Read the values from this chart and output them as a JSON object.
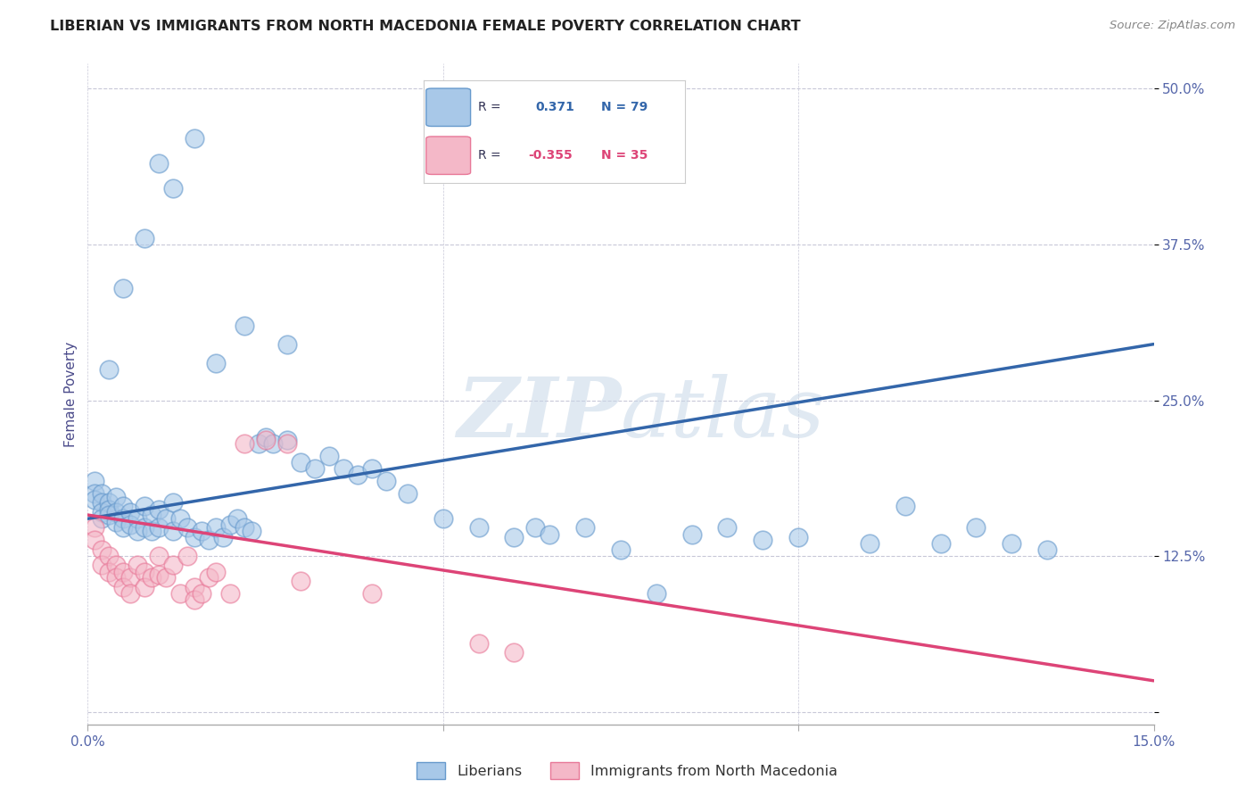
{
  "title": "LIBERIAN VS IMMIGRANTS FROM NORTH MACEDONIA FEMALE POVERTY CORRELATION CHART",
  "source": "Source: ZipAtlas.com",
  "ylabel": "Female Poverty",
  "watermark": "ZIPatlas",
  "xlim": [
    0.0,
    0.15
  ],
  "ylim": [
    -0.01,
    0.52
  ],
  "xticks": [
    0.0,
    0.05,
    0.1,
    0.15
  ],
  "xticklabels": [
    "0.0%",
    "",
    "",
    "15.0%"
  ],
  "ytick_positions": [
    0.0,
    0.125,
    0.25,
    0.375,
    0.5
  ],
  "ytick_labels": [
    "",
    "12.5%",
    "25.0%",
    "37.5%",
    "50.0%"
  ],
  "blue_color": "#a8c8e8",
  "pink_color": "#f4b8c8",
  "blue_edge_color": "#6699cc",
  "pink_edge_color": "#e87898",
  "blue_line_color": "#3366aa",
  "pink_line_color": "#dd4477",
  "grid_color": "#c8c8d8",
  "background_color": "#ffffff",
  "blue_scatter_x": [
    0.001,
    0.001,
    0.001,
    0.002,
    0.002,
    0.002,
    0.002,
    0.003,
    0.003,
    0.003,
    0.004,
    0.004,
    0.004,
    0.005,
    0.005,
    0.005,
    0.006,
    0.006,
    0.007,
    0.007,
    0.008,
    0.008,
    0.009,
    0.009,
    0.01,
    0.01,
    0.011,
    0.012,
    0.012,
    0.013,
    0.014,
    0.015,
    0.016,
    0.017,
    0.018,
    0.019,
    0.02,
    0.021,
    0.022,
    0.023,
    0.024,
    0.025,
    0.026,
    0.028,
    0.03,
    0.032,
    0.034,
    0.036,
    0.038,
    0.04,
    0.042,
    0.045,
    0.05,
    0.055,
    0.06,
    0.063,
    0.065,
    0.07,
    0.075,
    0.08,
    0.085,
    0.09,
    0.095,
    0.1,
    0.11,
    0.115,
    0.12,
    0.125,
    0.13,
    0.135,
    0.003,
    0.005,
    0.008,
    0.01,
    0.012,
    0.015,
    0.018,
    0.022,
    0.028
  ],
  "blue_scatter_y": [
    0.185,
    0.175,
    0.17,
    0.175,
    0.168,
    0.16,
    0.155,
    0.168,
    0.162,
    0.158,
    0.172,
    0.16,
    0.152,
    0.165,
    0.155,
    0.148,
    0.16,
    0.15,
    0.155,
    0.145,
    0.165,
    0.148,
    0.158,
    0.145,
    0.162,
    0.148,
    0.155,
    0.168,
    0.145,
    0.155,
    0.148,
    0.14,
    0.145,
    0.138,
    0.148,
    0.14,
    0.15,
    0.155,
    0.148,
    0.145,
    0.215,
    0.22,
    0.215,
    0.218,
    0.2,
    0.195,
    0.205,
    0.195,
    0.19,
    0.195,
    0.185,
    0.175,
    0.155,
    0.148,
    0.14,
    0.148,
    0.142,
    0.148,
    0.13,
    0.095,
    0.142,
    0.148,
    0.138,
    0.14,
    0.135,
    0.165,
    0.135,
    0.148,
    0.135,
    0.13,
    0.275,
    0.34,
    0.38,
    0.44,
    0.42,
    0.46,
    0.28,
    0.31,
    0.295
  ],
  "pink_scatter_x": [
    0.001,
    0.001,
    0.002,
    0.002,
    0.003,
    0.003,
    0.004,
    0.004,
    0.005,
    0.005,
    0.006,
    0.006,
    0.007,
    0.008,
    0.008,
    0.009,
    0.01,
    0.01,
    0.011,
    0.012,
    0.013,
    0.014,
    0.015,
    0.015,
    0.016,
    0.017,
    0.018,
    0.02,
    0.022,
    0.025,
    0.028,
    0.03,
    0.04,
    0.055,
    0.06
  ],
  "pink_scatter_y": [
    0.148,
    0.138,
    0.13,
    0.118,
    0.125,
    0.112,
    0.118,
    0.108,
    0.112,
    0.1,
    0.108,
    0.095,
    0.118,
    0.112,
    0.1,
    0.108,
    0.125,
    0.11,
    0.108,
    0.118,
    0.095,
    0.125,
    0.1,
    0.09,
    0.095,
    0.108,
    0.112,
    0.095,
    0.215,
    0.218,
    0.215,
    0.105,
    0.095,
    0.055,
    0.048
  ],
  "blue_trend_x": [
    0.0,
    0.15
  ],
  "blue_trend_y": [
    0.155,
    0.295
  ],
  "pink_trend_x": [
    0.0,
    0.15
  ],
  "pink_trend_y": [
    0.158,
    0.025
  ]
}
